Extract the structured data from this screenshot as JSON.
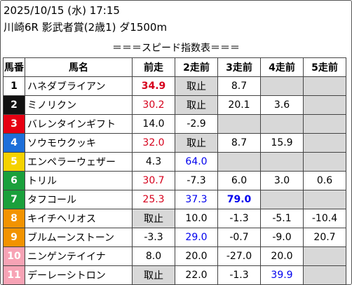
{
  "header": {
    "datetime": "2025/10/15 (水) 17:15",
    "race": "川崎6R 影武者賞(2歳1) ダ1500m"
  },
  "caption": "＝＝＝スピード指数表＝＝＝",
  "columns": [
    "馬番",
    "馬名",
    "前走",
    "2走前",
    "3走前",
    "4走前",
    "5走前"
  ],
  "colors": {
    "gate_1": "#ffffff",
    "gate_2": "#111111",
    "gate_3": "#e60012",
    "gate_4": "#1e6fd9",
    "gate_5": "#f5d200",
    "gate_6": "#1aa03c",
    "gate_7": "#f29300",
    "gate_8": "#f7a3b5",
    "value_red": "#d6001c",
    "value_blue": "#0000ee",
    "empty_cell": "#d8d8d8"
  },
  "rows": [
    {
      "num": "1",
      "name": "ハネダブライアン",
      "cells": [
        {
          "v": "34.9",
          "s": "red bold"
        },
        {
          "v": "取止",
          "s": "gray"
        },
        {
          "v": "8.7",
          "s": ""
        },
        {
          "v": "",
          "s": "gray"
        },
        {
          "v": "",
          "s": "gray"
        }
      ]
    },
    {
      "num": "2",
      "name": "ミノリクン",
      "cells": [
        {
          "v": "30.2",
          "s": "red"
        },
        {
          "v": "取止",
          "s": "gray"
        },
        {
          "v": "20.1",
          "s": ""
        },
        {
          "v": "3.6",
          "s": ""
        },
        {
          "v": "",
          "s": "gray"
        }
      ]
    },
    {
      "num": "3",
      "name": "バレンタインギフト",
      "cells": [
        {
          "v": "14.0",
          "s": ""
        },
        {
          "v": "-2.9",
          "s": ""
        },
        {
          "v": "",
          "s": "gray"
        },
        {
          "v": "",
          "s": "gray"
        },
        {
          "v": "",
          "s": "gray"
        }
      ]
    },
    {
      "num": "4",
      "name": "ソウモウクッキ",
      "cells": [
        {
          "v": "32.0",
          "s": "red"
        },
        {
          "v": "取止",
          "s": "gray"
        },
        {
          "v": "8.7",
          "s": ""
        },
        {
          "v": "15.9",
          "s": ""
        },
        {
          "v": "",
          "s": "gray"
        }
      ]
    },
    {
      "num": "5",
      "name": "エンペラーウェザー",
      "cells": [
        {
          "v": "4.3",
          "s": ""
        },
        {
          "v": "64.0",
          "s": "blue"
        },
        {
          "v": "",
          "s": "gray"
        },
        {
          "v": "",
          "s": "gray"
        },
        {
          "v": "",
          "s": "gray"
        }
      ]
    },
    {
      "num": "6",
      "name": "トリル",
      "cells": [
        {
          "v": "30.7",
          "s": "red"
        },
        {
          "v": "-7.3",
          "s": ""
        },
        {
          "v": "6.0",
          "s": ""
        },
        {
          "v": "3.0",
          "s": ""
        },
        {
          "v": "0.6",
          "s": ""
        }
      ]
    },
    {
      "num": "7",
      "name": "タフコール",
      "cells": [
        {
          "v": "25.3",
          "s": "red"
        },
        {
          "v": "37.3",
          "s": "blue"
        },
        {
          "v": "79.0",
          "s": "blue bold"
        },
        {
          "v": "",
          "s": "gray"
        },
        {
          "v": "",
          "s": "gray"
        }
      ]
    },
    {
      "num": "8",
      "name": "キイチヘリオス",
      "cells": [
        {
          "v": "取止",
          "s": "gray"
        },
        {
          "v": "10.0",
          "s": ""
        },
        {
          "v": "-1.3",
          "s": ""
        },
        {
          "v": "-5.1",
          "s": ""
        },
        {
          "v": "-10.4",
          "s": ""
        }
      ]
    },
    {
      "num": "9",
      "name": "ブルムーンストーン",
      "cells": [
        {
          "v": "-3.3",
          "s": ""
        },
        {
          "v": "29.0",
          "s": "blue"
        },
        {
          "v": "-0.7",
          "s": ""
        },
        {
          "v": "-9.0",
          "s": ""
        },
        {
          "v": "20.7",
          "s": ""
        }
      ]
    },
    {
      "num": "10",
      "name": "ニンゲンテイイナ",
      "cells": [
        {
          "v": "8.0",
          "s": ""
        },
        {
          "v": "20.0",
          "s": ""
        },
        {
          "v": "-27.0",
          "s": ""
        },
        {
          "v": "20.0",
          "s": ""
        },
        {
          "v": "",
          "s": "gray"
        }
      ]
    },
    {
      "num": "11",
      "name": "デーレーシトロン",
      "cells": [
        {
          "v": "取止",
          "s": "gray"
        },
        {
          "v": "22.0",
          "s": ""
        },
        {
          "v": "-1.3",
          "s": ""
        },
        {
          "v": "39.9",
          "s": "blue"
        },
        {
          "v": "",
          "s": "gray"
        }
      ]
    }
  ]
}
